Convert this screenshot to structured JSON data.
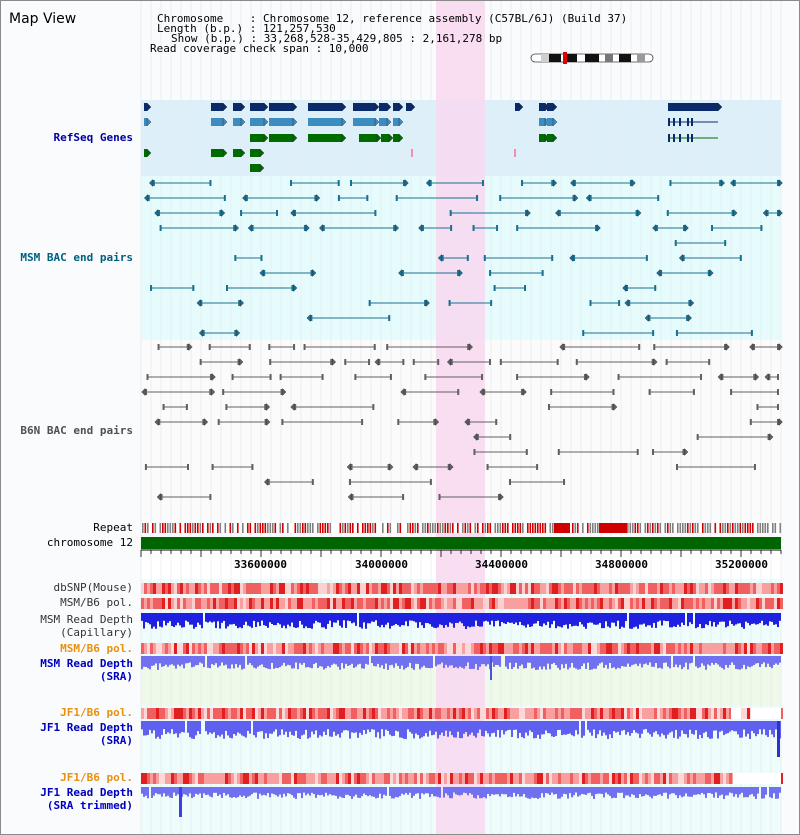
{
  "app": {
    "title": "Map View"
  },
  "info": {
    "chromosome_line": "Chromosome    : Chromosome 12, reference assembly (C57BL/6J) (Build 37)",
    "length_line": "Length (b.p.) : 121,257,530",
    "show_line": "Show (b.p.) : 33,268,528-35,429,805 : 2,161,278 bp",
    "coverage_line": "Read coverage check span : 10,000"
  },
  "tracks": {
    "refseq": "RefSeq Genes",
    "msm_bac": "MSM BAC end pairs",
    "b6n_bac": "B6N BAC end pairs",
    "repeat": "Repeat",
    "chromosome": "chromosome 12",
    "dbsnp": "dbSNP(Mouse)",
    "msm_b6_pol": "MSM/B6 pol.",
    "msm_read_depth_cap": "MSM Read Depth",
    "capillary": "(Capillary)",
    "msm_b6_pol_sra": "MSM/B6 pol.",
    "msm_read_depth_sra": "MSM Read Depth",
    "sra1": "(SRA)",
    "jf1_b6_pol": "JF1/B6 pol.",
    "jf1_read_depth": "JF1 Read Depth",
    "sra2": "(SRA)",
    "jf1_b6_pol_trim": "JF1/B6 pol.",
    "jf1_read_depth_trim": "JF1 Read Depth",
    "sra_trimmed": "(SRA trimmed)"
  },
  "axis": {
    "ticks": [
      "33600000",
      "34000000",
      "34400000",
      "34800000",
      "35200000"
    ]
  },
  "colors": {
    "refseq_bg": "#ddf0fa",
    "msm_bg": "#e6fcfc",
    "highlight": "#f8d8f0",
    "msm_label": "#006080",
    "b6n_label": "#505050",
    "refseq_label": "#0000a0",
    "orange_label": "#e89010",
    "blue_label": "#0000c0",
    "gene_dark": "#0a2a6a",
    "gene_mid": "#3c8cc0",
    "gene_green": "#006c00",
    "chromosome": "#006400"
  }
}
